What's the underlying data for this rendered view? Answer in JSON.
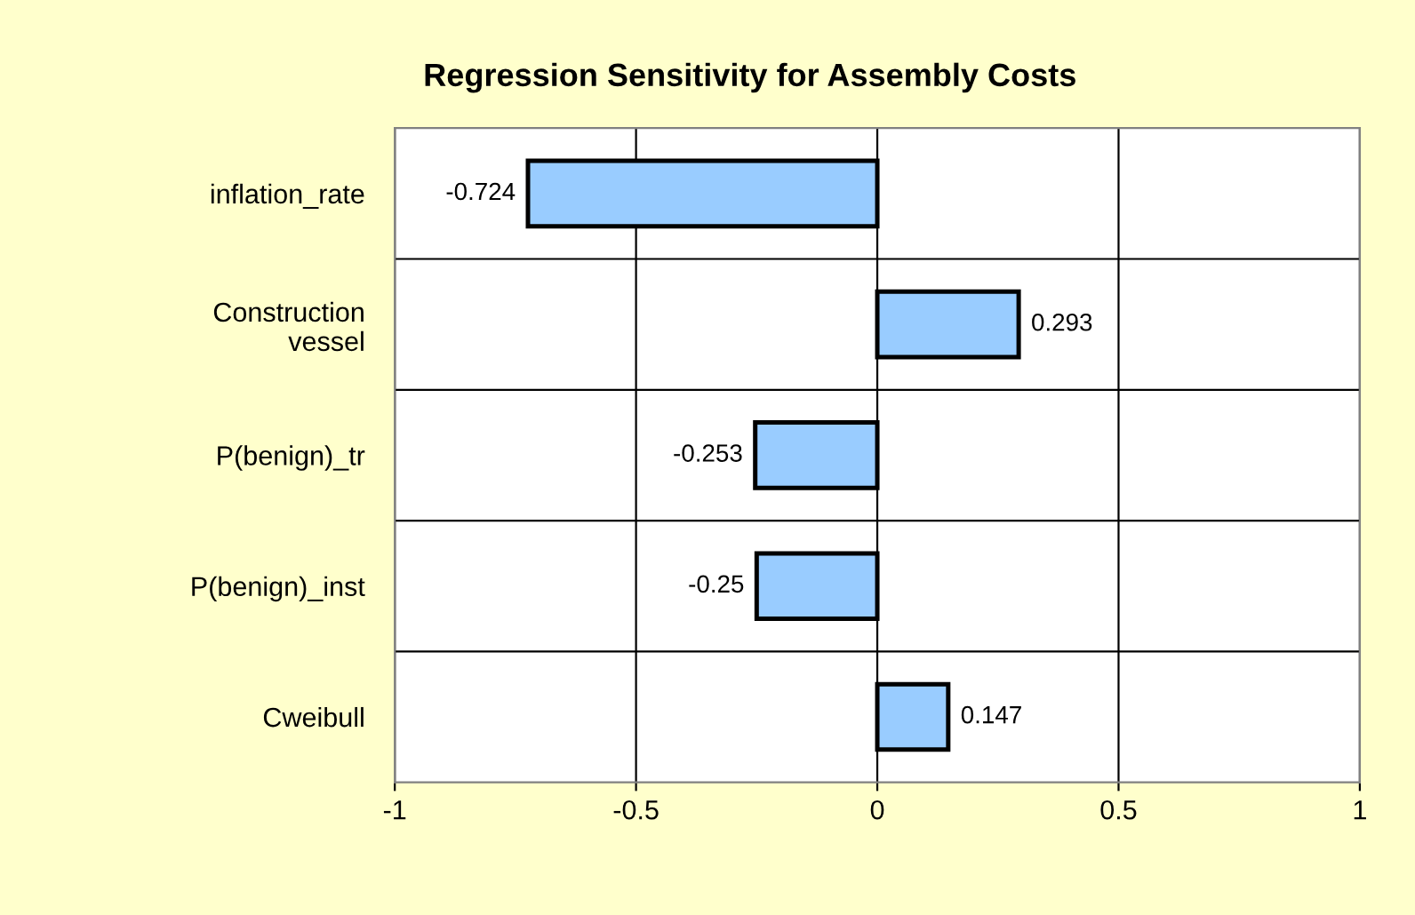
{
  "chart_data": {
    "type": "bar",
    "orientation": "horizontal",
    "title": "Regression Sensitivity for Assembly Costs",
    "categories": [
      "inflation_rate",
      "Construction\nvessel",
      "P(benign)_tr",
      "P(benign)_inst",
      "Cweibull"
    ],
    "values": [
      -0.724,
      0.293,
      -0.253,
      -0.25,
      0.147
    ],
    "color": "#99ccff",
    "xlim": [
      -1,
      1
    ],
    "xticks": [
      -1,
      -0.5,
      0,
      0.5,
      1
    ],
    "grid": true,
    "data_labels": true
  }
}
